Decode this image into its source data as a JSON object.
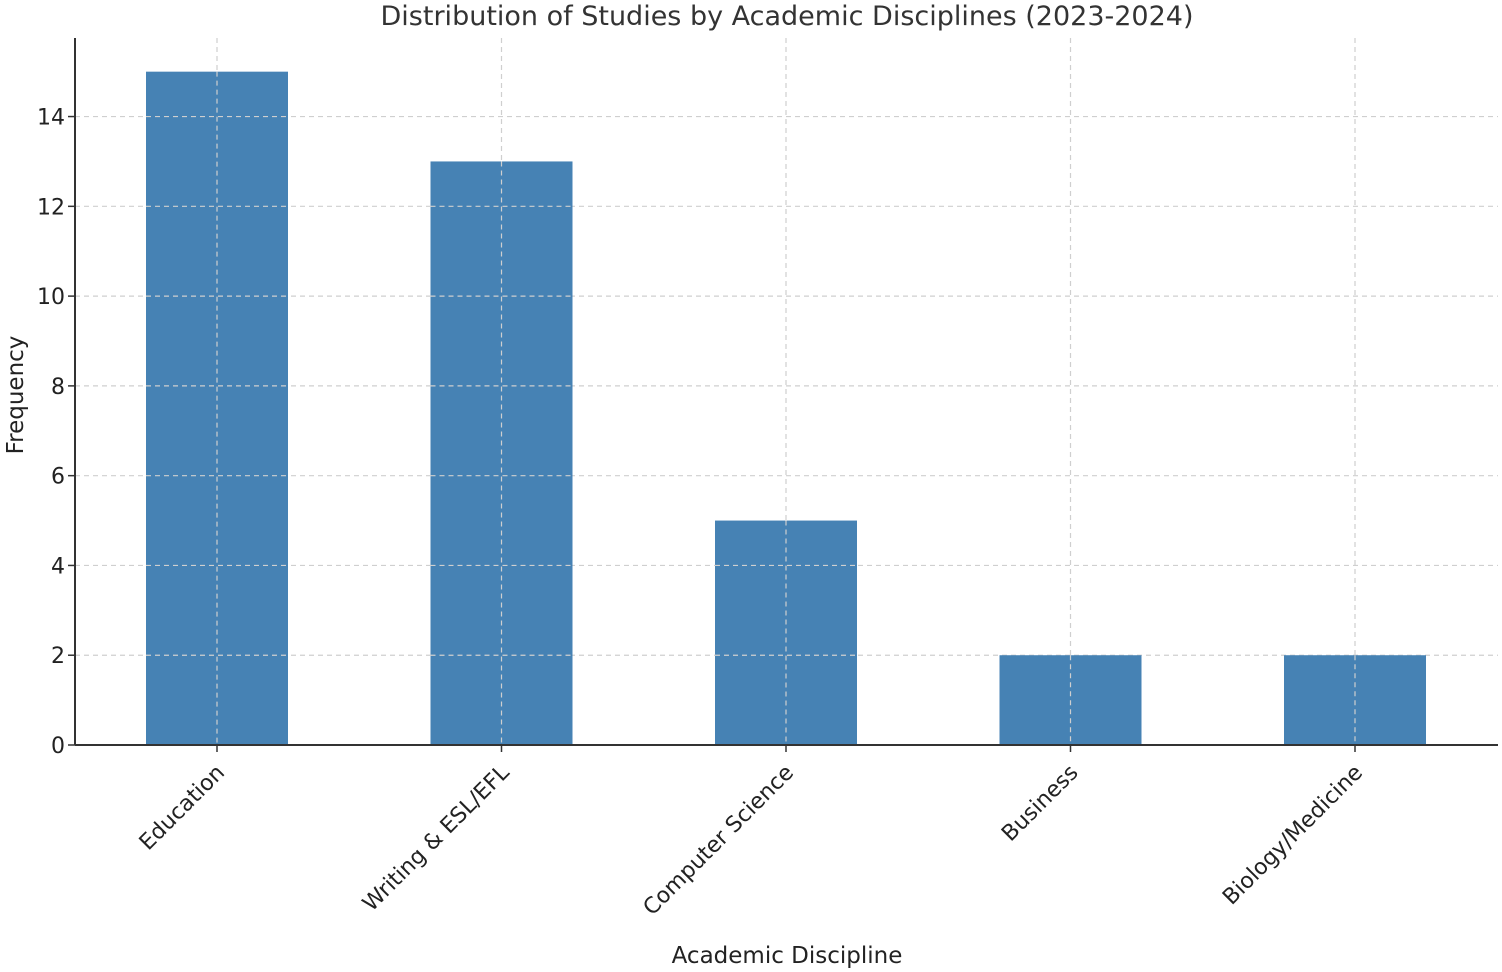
{
  "chart_data": {
    "type": "bar",
    "title": "Distribution of Studies by Academic Disciplines (2023-2024)",
    "xlabel": "Academic Discipline",
    "ylabel": "Frequency",
    "categories": [
      "Education",
      "Writing & ESL/EFL",
      "Computer Science",
      "Business",
      "Biology/Medicine"
    ],
    "values": [
      15,
      13,
      5,
      2,
      2
    ],
    "ylim": [
      0,
      15.75
    ],
    "yticks": [
      0,
      2,
      4,
      6,
      8,
      10,
      12,
      14
    ],
    "bar_color": "#4682b4",
    "grid": true
  }
}
